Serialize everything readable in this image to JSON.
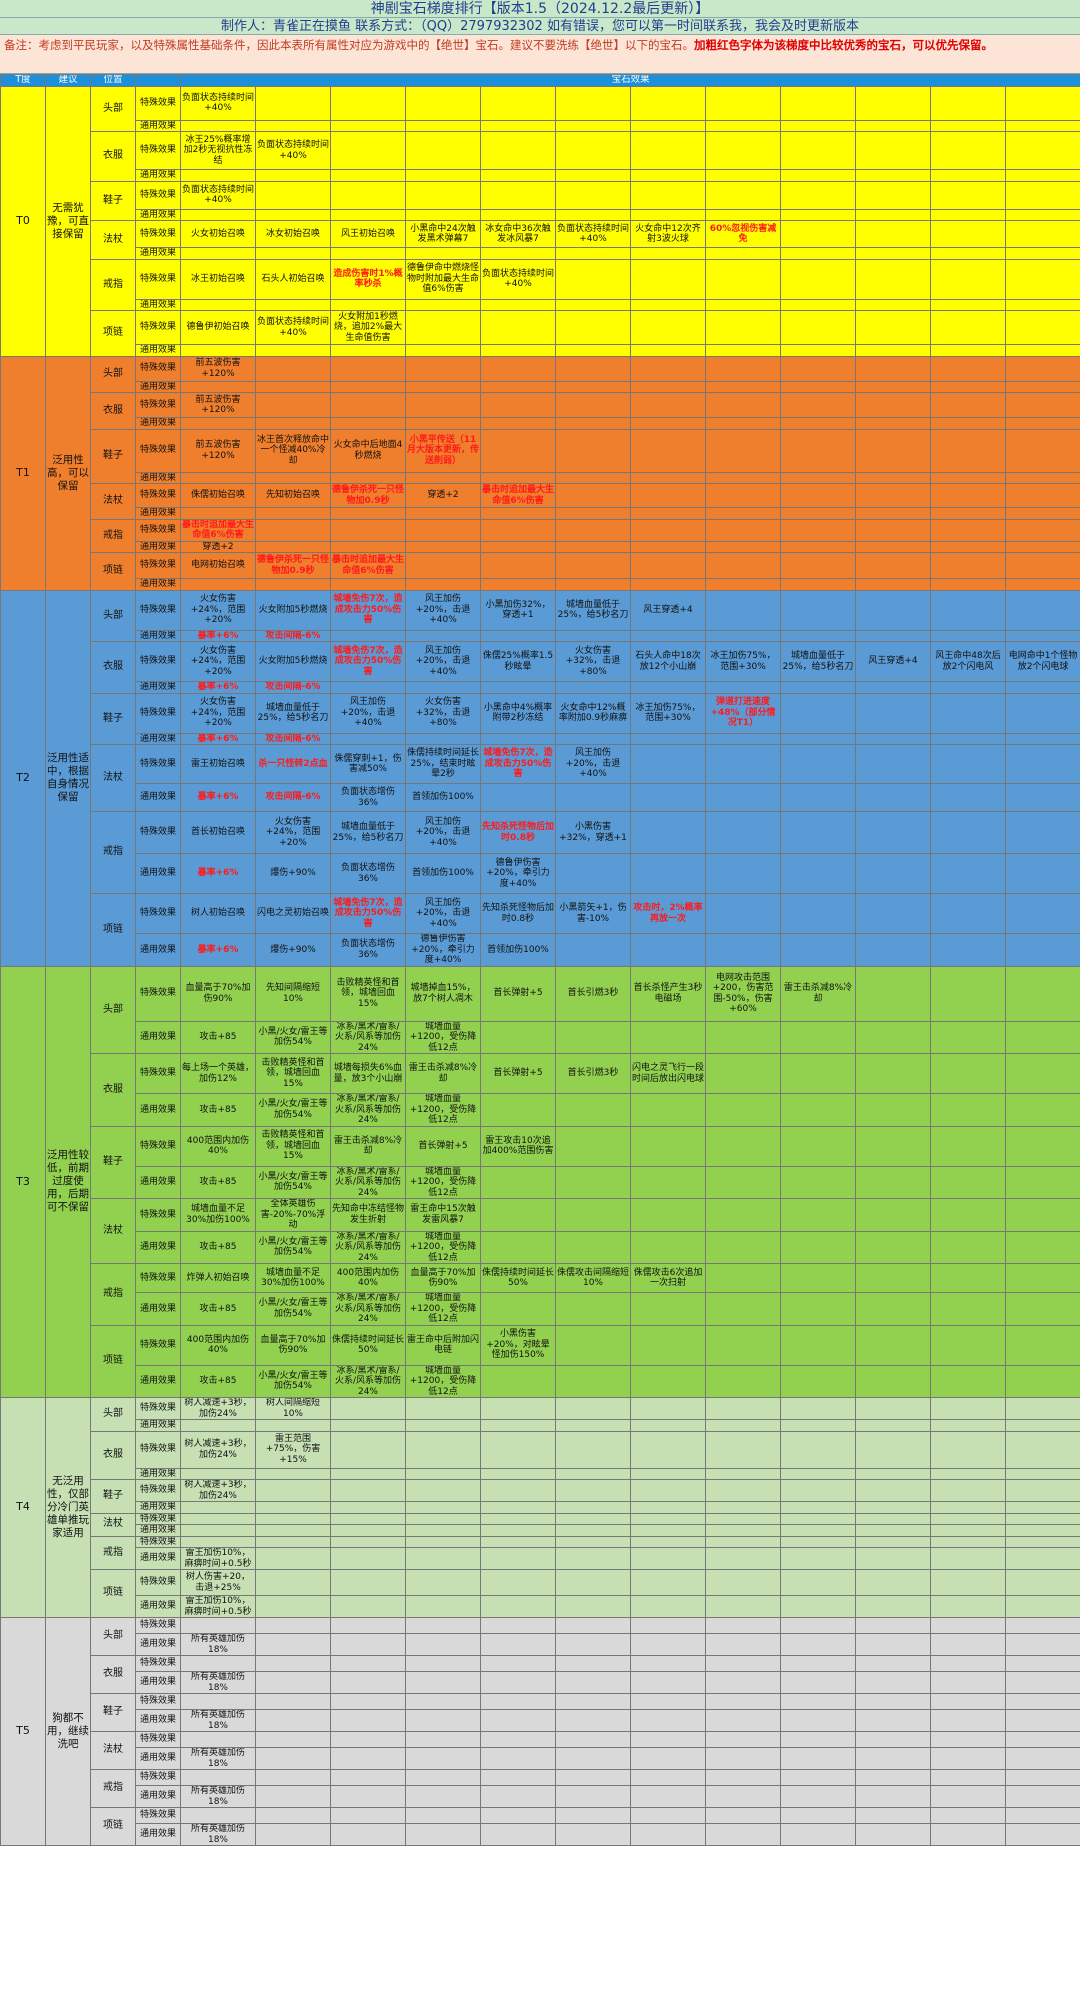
{
  "header": {
    "title": "神剧宝石梯度排行【版本1.5（2024.12.2最后更新）】",
    "author": "制作人：青雀正在摸鱼  联系方式：（QQ）2797932302  如有错误，您可以第一时间联系我，我会及时更新版本",
    "note_plain": "备注：考虑到平民玩家，以及特殊属性基础条件，因此本表所有属性对应为游戏中的【绝世】宝石。建议不要洗练【绝世】以下的宝石。",
    "note_bold": "加粗红色字体为该梯度中比较优秀的宝石，可以优先保留。"
  },
  "columns": {
    "tier": "T度",
    "advice": "建议",
    "position": "位置",
    "effects": "宝石效果"
  },
  "colors": {
    "T0": "#ffff00",
    "T1": "#f07f2d",
    "T2": "#5b9bd5",
    "T3": "#92d050",
    "T4": "#c6e0b4",
    "T5": "#d9d9d9",
    "highlight": "#ff1a1a",
    "caption": "#1e90d9"
  },
  "tiers": [
    {
      "tier": "T0",
      "advice": "无需犹豫，可直接保留",
      "slots": [
        {
          "pos": "头部",
          "rows": [
            {
              "type": "特殊效果",
              "cells": [
                "负面状态持续时间+40%"
              ]
            },
            {
              "type": "通用效果",
              "cells": []
            }
          ]
        },
        {
          "pos": "衣服",
          "rows": [
            {
              "type": "特殊效果",
              "cells": [
                "冰王25%概率增加2秒无视抗性冻结",
                "负面状态持续时间+40%"
              ]
            },
            {
              "type": "通用效果",
              "cells": []
            }
          ]
        },
        {
          "pos": "鞋子",
          "rows": [
            {
              "type": "特殊效果",
              "cells": [
                "负面状态持续时间+40%"
              ]
            },
            {
              "type": "通用效果",
              "cells": []
            }
          ]
        },
        {
          "pos": "法杖",
          "rows": [
            {
              "type": "特殊效果",
              "cells": [
                "火女初始召唤",
                "冰女初始召唤",
                "风王初始召唤",
                "小黑命中24次触发黑术弹幕7",
                "冰女命中36次触发冰风暴7",
                "负面状态持续时间+40%",
                "火女命中12次齐射3波火球",
                "!60%忽视伤害减免"
              ]
            },
            {
              "type": "通用效果",
              "cells": []
            }
          ]
        },
        {
          "pos": "戒指",
          "rows": [
            {
              "type": "特殊效果",
              "cells": [
                "冰王初始召唤",
                "石头人初始召唤",
                "!造成伤害时1%概率秒杀",
                "德鲁伊命中燃烧怪物时附加最大生命值6%伤害",
                "负面状态持续时间+40%"
              ]
            },
            {
              "type": "通用效果",
              "cells": []
            }
          ]
        },
        {
          "pos": "项链",
          "rows": [
            {
              "type": "特殊效果",
              "cells": [
                "德鲁伊初始召唤",
                "负面状态持续时间+40%",
                "火女附加1秒燃烧，追加2%最大生命值伤害"
              ]
            },
            {
              "type": "通用效果",
              "cells": []
            }
          ]
        }
      ]
    },
    {
      "tier": "T1",
      "advice": "泛用性高，可以保留",
      "slots": [
        {
          "pos": "头部",
          "rows": [
            {
              "type": "特殊效果",
              "cells": [
                "前五波伤害+120%"
              ]
            },
            {
              "type": "通用效果",
              "cells": []
            }
          ]
        },
        {
          "pos": "衣服",
          "rows": [
            {
              "type": "特殊效果",
              "cells": [
                "前五波伤害+120%"
              ]
            },
            {
              "type": "通用效果",
              "cells": []
            }
          ]
        },
        {
          "pos": "鞋子",
          "rows": [
            {
              "type": "特殊效果",
              "cells": [
                "前五波伤害+120%",
                "冰王首次释放命中一个怪减40%冷却",
                "火女命中后地面4秒燃烧",
                "!小黑平传送（11月大版本更新，传送削弱）"
              ]
            },
            {
              "type": "通用效果",
              "cells": []
            }
          ]
        },
        {
          "pos": "法杖",
          "rows": [
            {
              "type": "特殊效果",
              "cells": [
                "侏儒初始召唤",
                "先知初始召唤",
                "!德鲁伊杀死一只怪物加0.9秒",
                "穿透+2",
                "!暴击时追加最大生命值6%伤害"
              ]
            },
            {
              "type": "通用效果",
              "cells": []
            }
          ]
        },
        {
          "pos": "戒指",
          "rows": [
            {
              "type": "特殊效果",
              "cells": [
                "!暴击时追加最大生命值6%伤害"
              ]
            },
            {
              "type": "通用效果",
              "cells": [
                "穿透+2"
              ]
            }
          ]
        },
        {
          "pos": "项链",
          "rows": [
            {
              "type": "特殊效果",
              "cells": [
                "电网初始召唤",
                "!德鲁伊杀死一只怪物加0.9秒",
                "!暴击时追加最大生命值6%伤害"
              ]
            },
            {
              "type": "通用效果",
              "cells": []
            }
          ]
        }
      ]
    },
    {
      "tier": "T2",
      "advice": "泛用性适中，根据自身情况保留",
      "slots": [
        {
          "pos": "头部",
          "rows": [
            {
              "type": "特殊效果",
              "cells": [
                "火女伤害+24%，范围+20%",
                "火女附加5秒燃烧",
                "!城墙免伤7次，造成攻击力50%伤害",
                "风王加伤+20%，击退+40%",
                "小黑加伤32%，穿透+1",
                "城墙血量低于25%，给5秒名刀",
                "风王穿透+4"
              ]
            },
            {
              "type": "通用效果",
              "cells": [
                "!暴率+6%",
                "!攻击间隔-6%"
              ]
            }
          ]
        },
        {
          "pos": "衣服",
          "rows": [
            {
              "type": "特殊效果",
              "cells": [
                "火女伤害+24%，范围+20%",
                "火女附加5秒燃烧",
                "!城墙免伤7次，造成攻击力50%伤害",
                "风王加伤+20%，击退+40%",
                "侏儒25%概率1.5秒眩晕",
                "火女伤害+32%，击退+80%",
                "石头人命中18次放12个小山崩",
                "冰王加伤75%，范围+30%",
                "城墙血量低于25%，给5秒名刀",
                "风王穿透+4",
                "风王命中48次后放2个闪电风",
                "电网命中1个怪物放2个闪电球"
              ]
            },
            {
              "type": "通用效果",
              "cells": [
                "!暴率+6%",
                "!攻击间隔-6%"
              ]
            }
          ]
        },
        {
          "pos": "鞋子",
          "rows": [
            {
              "type": "特殊效果",
              "cells": [
                "火女伤害+24%，范围+20%",
                "城墙血量低于25%，给5秒名刀",
                "风王加伤+20%，击退+40%",
                "火女伤害+32%，击退+80%",
                "小黑命中4%概率附带2秒冻结",
                "火女命中12%概率附加0.9秒麻痹",
                "冰王加伤75%，范围+30%",
                "!弹道打进速度+48%（部分情况T1）"
              ]
            },
            {
              "type": "通用效果",
              "cells": [
                "!暴率+6%",
                "!攻击间隔-6%"
              ]
            }
          ]
        },
        {
          "pos": "法杖",
          "rows": [
            {
              "type": "特殊效果",
              "cells": [
                "雷王初始召唤",
                "!杀一只怪转2点血",
                "侏儒穿刺+1，伤害减50%",
                "侏儒持续时间延长25%，结束时眩晕2秒",
                "!城墙免伤7次，造成攻击力50%伤害",
                "风王加伤+20%，击退+40%"
              ]
            },
            {
              "type": "通用效果",
              "cells": [
                "!暴率+6%",
                "!攻击间隔-6%",
                "负面状态增伤36%",
                "首领加伤100%"
              ]
            }
          ]
        },
        {
          "pos": "戒指",
          "rows": [
            {
              "type": "特殊效果",
              "cells": [
                "首长初始召唤",
                "火女伤害+24%，范围+20%",
                "城墙血量低于25%，给5秒名刀",
                "风王加伤+20%，击退+40%",
                "!先知杀死怪物后加时0.8秒",
                "小黑伤害+32%，穿透+1"
              ]
            },
            {
              "type": "通用效果",
              "cells": [
                "!暴率+6%",
                "爆伤+90%",
                "负面状态增伤36%",
                "首领加伤100%",
                "德鲁伊伤害+20%，牵引力度+40%"
              ]
            }
          ]
        },
        {
          "pos": "项链",
          "rows": [
            {
              "type": "特殊效果",
              "cells": [
                "树人初始召唤",
                "闪电之灵初始召唤",
                "!城墙免伤7次，造成攻击力50%伤害",
                "风王加伤+20%，击退+40%",
                "先知杀死怪物后加时0.8秒",
                "小黑箭矢+1，伤害-10%",
                "!攻击时，2%概率再放一次"
              ]
            },
            {
              "type": "通用效果",
              "cells": [
                "!暴率+6%",
                "爆伤+90%",
                "负面状态增伤36%",
                "德鲁伊伤害+20%，牵引力度+40%",
                "首领加伤100%"
              ]
            }
          ]
        }
      ]
    },
    {
      "tier": "T3",
      "advice": "泛用性较低，前期过度使用，后期可不保留",
      "slots": [
        {
          "pos": "头部",
          "rows": [
            {
              "type": "特殊效果",
              "cells": [
                "血量高于70%加伤90%",
                "先知间隔缩短10%",
                "击败精英怪和首领，城墙回血15%",
                "城墙掉血15%，放7个树人凋木",
                "首长弹射+5",
                "首长引燃3秒",
                "首长杀怪产生3秒电磁场",
                "电网攻击范围+200，伤害范围-50%，伤害+60%",
                "雷王击杀减8%冷却"
              ]
            },
            {
              "type": "通用效果",
              "cells": [
                "攻击+85",
                "小黑/火女/雷王等加伤54%",
                "冰系/黑术/雷系/火系/风系等加伤24%",
                "城墙血量+1200，受伤降低12点"
              ]
            }
          ]
        },
        {
          "pos": "衣服",
          "rows": [
            {
              "type": "特殊效果",
              "cells": [
                "每上场一个英雄，加伤12%",
                "击败精英怪和首领，城墙回血15%",
                "城墙每损失6%血量，放3个小山崩",
                "雷王击杀减8%冷却",
                "首长弹射+5",
                "首长引燃3秒",
                "闪电之灵飞行一段时间后放出闪电球"
              ]
            },
            {
              "type": "通用效果",
              "cells": [
                "攻击+85",
                "小黑/火女/雷王等加伤54%",
                "冰系/黑术/雷系/火系/风系等加伤24%",
                "城墙血量+1200，受伤降低12点"
              ]
            }
          ]
        },
        {
          "pos": "鞋子",
          "rows": [
            {
              "type": "特殊效果",
              "cells": [
                "400范围内加伤40%",
                "击败精英怪和首领，城墙回血15%",
                "雷王击杀减8%冷却",
                "首长弹射+5",
                "雷王攻击10次追加400%范围伤害"
              ]
            },
            {
              "type": "通用效果",
              "cells": [
                "攻击+85",
                "小黑/火女/雷王等加伤54%",
                "冰系/黑术/雷系/火系/风系等加伤24%",
                "城墙血量+1200，受伤降低12点"
              ]
            }
          ]
        },
        {
          "pos": "法杖",
          "rows": [
            {
              "type": "特殊效果",
              "cells": [
                "城墙血量不足30%加伤100%",
                "全体英雄伤害-20%-70%浮动",
                "先知命中冻结怪物发生折射",
                "雷王命中15次触发雷风暴7"
              ]
            },
            {
              "type": "通用效果",
              "cells": [
                "攻击+85",
                "小黑/火女/雷王等加伤54%",
                "冰系/黑术/雷系/火系/风系等加伤24%",
                "城墙血量+1200，受伤降低12点"
              ]
            }
          ]
        },
        {
          "pos": "戒指",
          "rows": [
            {
              "type": "特殊效果",
              "cells": [
                "炸弹人初始召唤",
                "城墙血量不足30%加伤100%",
                "400范围内加伤40%",
                "血量高于70%加伤90%",
                "侏儒持续时间延长50%",
                "侏儒攻击间隔缩短10%",
                "侏儒攻击6次追加一次扫射"
              ]
            },
            {
              "type": "通用效果",
              "cells": [
                "攻击+85",
                "小黑/火女/雷王等加伤54%",
                "冰系/黑术/雷系/火系/风系等加伤24%",
                "城墙血量+1200，受伤降低12点"
              ]
            }
          ]
        },
        {
          "pos": "项链",
          "rows": [
            {
              "type": "特殊效果",
              "cells": [
                "400范围内加伤40%",
                "血量高于70%加伤90%",
                "侏儒持续时间延长50%",
                "雷王命中后附加闪电链",
                "小黑伤害+20%，对眩晕怪加伤150%"
              ]
            },
            {
              "type": "通用效果",
              "cells": [
                "攻击+85",
                "小黑/火女/雷王等加伤54%",
                "冰系/黑术/雷系/火系/风系等加伤24%",
                "城墙血量+1200，受伤降低12点"
              ]
            }
          ]
        }
      ]
    },
    {
      "tier": "T4",
      "advice": "无泛用性，仅部分冷门英雄单推玩家适用",
      "slots": [
        {
          "pos": "头部",
          "rows": [
            {
              "type": "特殊效果",
              "cells": [
                "树人减速+3秒，加伤24%",
                "树人间隔缩短10%"
              ]
            },
            {
              "type": "通用效果",
              "cells": []
            }
          ]
        },
        {
          "pos": "衣服",
          "rows": [
            {
              "type": "特殊效果",
              "cells": [
                "树人减速+3秒，加伤24%",
                "雷王范围+75%，伤害+15%"
              ]
            },
            {
              "type": "通用效果",
              "cells": []
            }
          ]
        },
        {
          "pos": "鞋子",
          "rows": [
            {
              "type": "特殊效果",
              "cells": [
                "树人减速+3秒，加伤24%"
              ]
            },
            {
              "type": "通用效果",
              "cells": []
            }
          ]
        },
        {
          "pos": "法杖",
          "rows": [
            {
              "type": "特殊效果",
              "cells": []
            },
            {
              "type": "通用效果",
              "cells": []
            }
          ]
        },
        {
          "pos": "戒指",
          "rows": [
            {
              "type": "特殊效果",
              "cells": []
            },
            {
              "type": "通用效果",
              "cells": [
                "雷王加伤10%，麻痹时间+0.5秒"
              ]
            }
          ]
        },
        {
          "pos": "项链",
          "rows": [
            {
              "type": "特殊效果",
              "cells": [
                "树人伤害+20，击退+25%"
              ]
            },
            {
              "type": "通用效果",
              "cells": [
                "雷王加伤10%，麻痹时间+0.5秒"
              ]
            }
          ]
        }
      ]
    },
    {
      "tier": "T5",
      "advice": "狗都不用，继续洗吧",
      "slots": [
        {
          "pos": "头部",
          "rows": [
            {
              "type": "特殊效果",
              "cells": []
            },
            {
              "type": "通用效果",
              "cells": [
                "所有英雄加伤18%"
              ]
            }
          ]
        },
        {
          "pos": "衣服",
          "rows": [
            {
              "type": "特殊效果",
              "cells": []
            },
            {
              "type": "通用效果",
              "cells": [
                "所有英雄加伤18%"
              ]
            }
          ]
        },
        {
          "pos": "鞋子",
          "rows": [
            {
              "type": "特殊效果",
              "cells": []
            },
            {
              "type": "通用效果",
              "cells": [
                "所有英雄加伤18%"
              ]
            }
          ]
        },
        {
          "pos": "法杖",
          "rows": [
            {
              "type": "特殊效果",
              "cells": []
            },
            {
              "type": "通用效果",
              "cells": [
                "所有英雄加伤18%"
              ]
            }
          ]
        },
        {
          "pos": "戒指",
          "rows": [
            {
              "type": "特殊效果",
              "cells": []
            },
            {
              "type": "通用效果",
              "cells": [
                "所有英雄加伤18%"
              ]
            }
          ]
        },
        {
          "pos": "项链",
          "rows": [
            {
              "type": "特殊效果",
              "cells": []
            },
            {
              "type": "通用效果",
              "cells": [
                "所有英雄加伤18%"
              ]
            }
          ]
        }
      ]
    }
  ]
}
